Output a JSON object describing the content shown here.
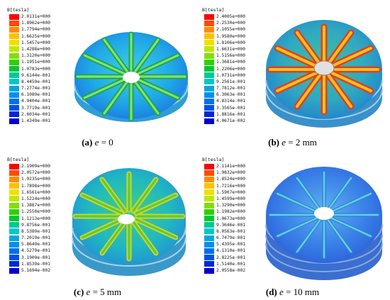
{
  "panels": [
    {
      "id": "a",
      "legend_title": "B[tesla]",
      "legend_values": [
        "2.0131e+000",
        "1.8962e+000",
        "1.7794e+000",
        "1.6625e+000",
        "1.5457e+000",
        "1.4288e+000",
        "1.3120e+000",
        "1.1951e+000",
        "1.0783e+000",
        "9.6144e-001",
        "8.4459e-001",
        "7.2774e-001",
        "6.1089e-001",
        "4.9404e-001",
        "3.7719e-001",
        "2.6034e-001",
        "1.4349e-001"
      ],
      "caption_tag": "(a)",
      "caption_var": "e",
      "caption_rest": " = 0"
    },
    {
      "id": "b",
      "legend_title": "B[tesla]",
      "legend_values": [
        "2.4005e+000",
        "2.2530e+000",
        "2.1055e+000",
        "1.9580e+000",
        "1.8106e+000",
        "1.6631e+000",
        "1.5156e+000",
        "1.3681e+000",
        "1.2206e+000",
        "1.0731e+000",
        "9.2561e-001",
        "7.7812e-001",
        "6.3063e-001",
        "4.8314e-001",
        "3.3565e-001",
        "1.8816e-001",
        "4.0671e-002"
      ],
      "caption_tag": "(b)",
      "caption_var": "e",
      "caption_rest": " = 2 mm"
    },
    {
      "id": "c",
      "legend_title": "B[tesla]",
      "legend_values": [
        "2.1909e+000",
        "2.0572e+000",
        "1.9235e+000",
        "1.7898e+000",
        "1.6561e+000",
        "1.5224e+000",
        "1.3887e+000",
        "1.2550e+000",
        "1.1213e+000",
        "9.8756e-001",
        "8.5389e-001",
        "7.2019e-001",
        "5.8649e-001",
        "4.5279e-001",
        "3.1909e-001",
        "1.8539e-001",
        "5.1694e-002"
      ],
      "caption_tag": "(c)",
      "caption_var": "e",
      "caption_rest": " = 5 mm"
    },
    {
      "id": "d",
      "legend_title": "B[tesla]",
      "legend_values": [
        "2.1141e+000",
        "1.9832e+000",
        "1.8524e+000",
        "1.7216e+000",
        "1.5907e+000",
        "1.4599e+000",
        "1.3290e+000",
        "1.1982e+000",
        "1.0673e+000",
        "9.3646e-001",
        "8.0563e-001",
        "6.7479e-001",
        "5.4395e-001",
        "4.1310e-001",
        "2.8225e-001",
        "1.5140e-001",
        "2.0558e-002"
      ],
      "caption_tag": "(d)",
      "caption_var": "e",
      "caption_rest": " = 10 mm"
    }
  ],
  "colors": {
    "scale": [
      "#ff0000",
      "#ff4a00",
      "#ff8c00",
      "#ffc000",
      "#f0e000",
      "#bfe800",
      "#80e000",
      "#30d000",
      "#00c830",
      "#00c896",
      "#00c8c8",
      "#00a8e0",
      "#0090f0",
      "#0070f0",
      "#0050e8",
      "#0028d8",
      "#0000c8"
    ]
  }
}
